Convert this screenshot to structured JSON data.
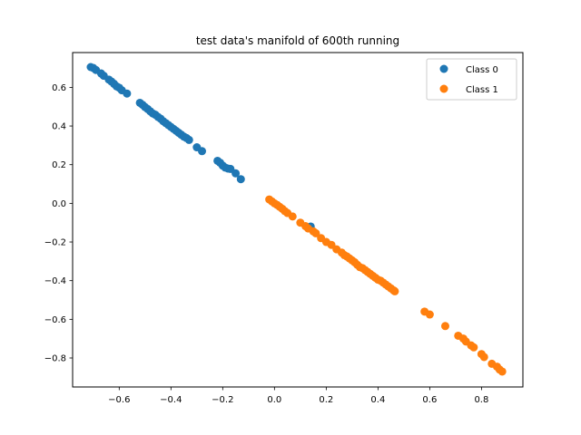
{
  "chart_data": {
    "type": "scatter",
    "title": "test data's manifold of 600th running",
    "xlabel": "",
    "ylabel": "",
    "xlim": [
      -0.78,
      0.96
    ],
    "ylim": [
      -0.95,
      0.78
    ],
    "xticks": [
      -0.6,
      -0.4,
      -0.2,
      0.0,
      0.2,
      0.4,
      0.6,
      0.8
    ],
    "xtick_labels": [
      "−0.6",
      "−0.4",
      "−0.2",
      "0.0",
      "0.2",
      "0.4",
      "0.6",
      "0.8"
    ],
    "yticks": [
      0.6,
      0.4,
      0.2,
      0.0,
      -0.2,
      -0.4,
      -0.6,
      -0.8
    ],
    "ytick_labels": [
      "0.6",
      "0.4",
      "0.2",
      "0.0",
      "−0.2",
      "−0.4",
      "−0.6",
      "−0.8"
    ],
    "grid": false,
    "legend_position": "top-right",
    "series": [
      {
        "name": "Class 0",
        "color": "#1f77b4",
        "points": [
          [
            -0.71,
            0.705
          ],
          [
            -0.7,
            0.7
          ],
          [
            -0.69,
            0.69
          ],
          [
            -0.67,
            0.672
          ],
          [
            -0.66,
            0.66
          ],
          [
            -0.64,
            0.64
          ],
          [
            -0.63,
            0.63
          ],
          [
            -0.62,
            0.618
          ],
          [
            -0.61,
            0.605
          ],
          [
            -0.6,
            0.598
          ],
          [
            -0.59,
            0.585
          ],
          [
            -0.57,
            0.568
          ],
          [
            -0.52,
            0.52
          ],
          [
            -0.51,
            0.51
          ],
          [
            -0.5,
            0.498
          ],
          [
            -0.49,
            0.488
          ],
          [
            -0.48,
            0.476
          ],
          [
            -0.47,
            0.465
          ],
          [
            -0.46,
            0.458
          ],
          [
            -0.45,
            0.447
          ],
          [
            -0.44,
            0.438
          ],
          [
            -0.43,
            0.425
          ],
          [
            -0.42,
            0.415
          ],
          [
            -0.41,
            0.405
          ],
          [
            -0.4,
            0.395
          ],
          [
            -0.39,
            0.385
          ],
          [
            -0.38,
            0.375
          ],
          [
            -0.37,
            0.365
          ],
          [
            -0.36,
            0.355
          ],
          [
            -0.35,
            0.345
          ],
          [
            -0.34,
            0.338
          ],
          [
            -0.33,
            0.328
          ],
          [
            -0.3,
            0.29
          ],
          [
            -0.28,
            0.27
          ],
          [
            -0.22,
            0.22
          ],
          [
            -0.21,
            0.21
          ],
          [
            -0.2,
            0.195
          ],
          [
            -0.19,
            0.185
          ],
          [
            -0.18,
            0.18
          ],
          [
            -0.17,
            0.178
          ],
          [
            -0.15,
            0.155
          ],
          [
            -0.13,
            0.125
          ],
          [
            0.14,
            -0.12
          ]
        ]
      },
      {
        "name": "Class 1",
        "color": "#ff7f0e",
        "points": [
          [
            -0.02,
            0.02
          ],
          [
            -0.01,
            0.01
          ],
          [
            0.0,
            0.0
          ],
          [
            0.01,
            -0.008
          ],
          [
            0.02,
            -0.018
          ],
          [
            0.03,
            -0.028
          ],
          [
            0.04,
            -0.04
          ],
          [
            0.05,
            -0.05
          ],
          [
            0.07,
            -0.068
          ],
          [
            0.1,
            -0.1
          ],
          [
            0.12,
            -0.118
          ],
          [
            0.13,
            -0.13
          ],
          [
            0.15,
            -0.145
          ],
          [
            0.16,
            -0.155
          ],
          [
            0.18,
            -0.18
          ],
          [
            0.2,
            -0.2
          ],
          [
            0.22,
            -0.215
          ],
          [
            0.24,
            -0.238
          ],
          [
            0.26,
            -0.255
          ],
          [
            0.27,
            -0.268
          ],
          [
            0.28,
            -0.275
          ],
          [
            0.29,
            -0.285
          ],
          [
            0.3,
            -0.295
          ],
          [
            0.31,
            -0.305
          ],
          [
            0.32,
            -0.318
          ],
          [
            0.33,
            -0.33
          ],
          [
            0.34,
            -0.335
          ],
          [
            0.35,
            -0.345
          ],
          [
            0.36,
            -0.355
          ],
          [
            0.37,
            -0.365
          ],
          [
            0.38,
            -0.375
          ],
          [
            0.39,
            -0.385
          ],
          [
            0.4,
            -0.395
          ],
          [
            0.41,
            -0.4
          ],
          [
            0.42,
            -0.41
          ],
          [
            0.43,
            -0.42
          ],
          [
            0.44,
            -0.43
          ],
          [
            0.45,
            -0.44
          ],
          [
            0.46,
            -0.45
          ],
          [
            0.465,
            -0.455
          ],
          [
            0.58,
            -0.56
          ],
          [
            0.6,
            -0.575
          ],
          [
            0.66,
            -0.635
          ],
          [
            0.71,
            -0.685
          ],
          [
            0.73,
            -0.7
          ],
          [
            0.74,
            -0.715
          ],
          [
            0.76,
            -0.735
          ],
          [
            0.77,
            -0.745
          ],
          [
            0.8,
            -0.78
          ],
          [
            0.81,
            -0.795
          ],
          [
            0.84,
            -0.83
          ],
          [
            0.86,
            -0.845
          ],
          [
            0.87,
            -0.86
          ],
          [
            0.88,
            -0.87
          ]
        ]
      }
    ]
  }
}
